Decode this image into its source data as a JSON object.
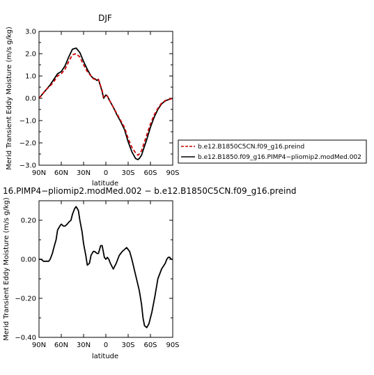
{
  "chart_data": [
    {
      "type": "line",
      "title": "DJF",
      "xlabel": "latitude",
      "ylabel": "Merid Transient Eddy Moisture  (m/s g/kg)",
      "xlim": [
        90,
        -90
      ],
      "ylim": [
        -3.0,
        3.0
      ],
      "xticks": [
        90,
        60,
        30,
        0,
        -30,
        -60,
        -90
      ],
      "xtick_labels": [
        "90N",
        "60N",
        "30N",
        "0",
        "30S",
        "60S",
        "90S"
      ],
      "yticks": [
        3.0,
        2.0,
        1.0,
        0.0,
        -1.0,
        -2.0,
        -3.0
      ],
      "ytick_labels": [
        "3.0",
        "2.0",
        "1.0",
        "0.0",
        "−1.0",
        "−2.0",
        "−3.0"
      ],
      "legend": "outside-right",
      "series": [
        {
          "name": "b.e12.B1850C5CN.f09_g16.preind",
          "color": "#cc0000",
          "dash": "dashed",
          "x": [
            90,
            85,
            80,
            75,
            70,
            65,
            60,
            55,
            50,
            45,
            40,
            35,
            30,
            25,
            20,
            17,
            15,
            12,
            10,
            5,
            3,
            0,
            -2,
            -5,
            -10,
            -15,
            -20,
            -25,
            -30,
            -35,
            -40,
            -43,
            -45,
            -48,
            -50,
            -55,
            -60,
            -65,
            -70,
            -75,
            -80,
            -85,
            -90
          ],
          "y": [
            0.0,
            0.2,
            0.4,
            0.55,
            0.75,
            1.0,
            1.1,
            1.3,
            1.65,
            1.95,
            2.0,
            1.85,
            1.5,
            1.2,
            1.0,
            0.88,
            0.85,
            0.85,
            0.85,
            0.35,
            0.05,
            0.12,
            0.1,
            -0.1,
            -0.4,
            -0.7,
            -1.0,
            -1.3,
            -1.8,
            -2.2,
            -2.45,
            -2.55,
            -2.5,
            -2.35,
            -2.15,
            -1.65,
            -1.15,
            -0.75,
            -0.45,
            -0.22,
            -0.1,
            -0.05,
            0.0
          ]
        },
        {
          "name": "b.e12.B1850.f09_g16.PIMP4−pliomip2.modMed.002",
          "color": "#000000",
          "dash": "solid",
          "x": [
            90,
            85,
            80,
            75,
            70,
            65,
            60,
            55,
            50,
            45,
            40,
            35,
            30,
            25,
            20,
            17,
            15,
            12,
            10,
            5,
            3,
            0,
            -2,
            -5,
            -10,
            -15,
            -20,
            -25,
            -30,
            -35,
            -40,
            -43,
            -45,
            -48,
            -50,
            -55,
            -60,
            -65,
            -70,
            -75,
            -80,
            -85,
            -90
          ],
          "y": [
            0.0,
            0.2,
            0.4,
            0.6,
            0.85,
            1.1,
            1.2,
            1.45,
            1.85,
            2.2,
            2.25,
            2.05,
            1.65,
            1.3,
            1.0,
            0.9,
            0.88,
            0.8,
            0.85,
            0.3,
            0.0,
            0.15,
            0.1,
            -0.1,
            -0.4,
            -0.75,
            -1.05,
            -1.4,
            -1.95,
            -2.4,
            -2.7,
            -2.75,
            -2.7,
            -2.55,
            -2.35,
            -1.85,
            -1.3,
            -0.85,
            -0.5,
            -0.25,
            -0.12,
            -0.05,
            0.0
          ]
        }
      ]
    },
    {
      "type": "line",
      "title": "16.PIMP4−pliomip2.modMed.002 − b.e12.B1850C5CN.f09_g16.preind",
      "xlabel": "latitude",
      "ylabel": "Merid Transient Eddy Moisture  (m/s g/kg)",
      "xlim": [
        90,
        -90
      ],
      "ylim": [
        -0.4,
        0.3
      ],
      "xticks": [
        90,
        60,
        30,
        0,
        -30,
        -60,
        -90
      ],
      "xtick_labels": [
        "90N",
        "60N",
        "30N",
        "0",
        "30S",
        "60S",
        "90S"
      ],
      "yticks": [
        0.2,
        0.0,
        -0.2,
        -0.4
      ],
      "ytick_labels": [
        "0.20",
        "0.00",
        "−0.20",
        "−0.40"
      ],
      "series": [
        {
          "color": "#000000",
          "dash": "solid",
          "x": [
            90,
            87,
            84,
            80,
            77,
            75,
            72,
            70,
            67,
            65,
            62,
            60,
            57,
            55,
            52,
            50,
            47,
            45,
            42,
            40,
            37,
            35,
            32,
            30,
            27,
            25,
            22,
            20,
            17,
            15,
            12,
            10,
            7,
            5,
            2,
            0,
            -2,
            -4,
            -6,
            -10,
            -14,
            -18,
            -22,
            -25,
            -28,
            -32,
            -35,
            -40,
            -45,
            -48,
            -50,
            -52,
            -55,
            -58,
            -62,
            -66,
            -70,
            -75,
            -80,
            -82,
            -84,
            -86,
            -88,
            -90
          ],
          "y": [
            0.0,
            0.0,
            -0.01,
            -0.01,
            -0.01,
            0.0,
            0.03,
            0.06,
            0.1,
            0.15,
            0.17,
            0.18,
            0.17,
            0.17,
            0.18,
            0.19,
            0.2,
            0.23,
            0.26,
            0.27,
            0.25,
            0.2,
            0.14,
            0.08,
            0.02,
            -0.03,
            -0.02,
            0.02,
            0.04,
            0.04,
            0.03,
            0.03,
            0.07,
            0.07,
            0.01,
            0.0,
            0.01,
            0.0,
            -0.02,
            -0.05,
            -0.02,
            0.02,
            0.04,
            0.05,
            0.06,
            0.04,
            0.0,
            -0.08,
            -0.16,
            -0.23,
            -0.3,
            -0.34,
            -0.35,
            -0.33,
            -0.27,
            -0.19,
            -0.1,
            -0.05,
            -0.02,
            0.0,
            0.01,
            0.01,
            0.0,
            0.0
          ]
        }
      ]
    }
  ]
}
